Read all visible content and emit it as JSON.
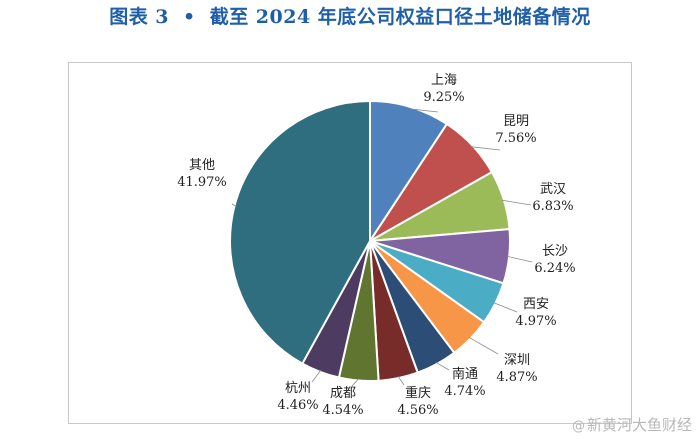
{
  "header": {
    "figure_no": "图表 3",
    "bullet": "•",
    "title": "截至 2024 年底公司权益口径土地储备情况"
  },
  "watermark": {
    "prefix": "@",
    "text": "新黄河大鱼财经"
  },
  "chart_data": {
    "type": "pie",
    "title": "截至 2024 年底公司权益口径土地储备情况",
    "slices": [
      {
        "name": "上海",
        "value": 9.25,
        "label": "9.25%",
        "color": "#4f81bd"
      },
      {
        "name": "昆明",
        "value": 7.56,
        "label": "7.56%",
        "color": "#c0504d"
      },
      {
        "name": "武汉",
        "value": 6.83,
        "label": "6.83%",
        "color": "#9bbb59"
      },
      {
        "name": "长沙",
        "value": 6.24,
        "label": "6.24%",
        "color": "#8064a2"
      },
      {
        "name": "西安",
        "value": 4.97,
        "label": "4.97%",
        "color": "#4bacc6"
      },
      {
        "name": "深圳",
        "value": 4.87,
        "label": "4.87%",
        "color": "#f79646"
      },
      {
        "name": "南通",
        "value": 4.74,
        "label": "4.74%",
        "color": "#2c4d75"
      },
      {
        "name": "重庆",
        "value": 4.56,
        "label": "4.56%",
        "color": "#772c2a"
      },
      {
        "name": "成都",
        "value": 4.54,
        "label": "4.54%",
        "color": "#5f7530"
      },
      {
        "name": "杭州",
        "value": 4.46,
        "label": "4.46%",
        "color": "#4d3b62"
      },
      {
        "name": "其他",
        "value": 41.97,
        "label": "41.97%",
        "color": "#2e6e7e"
      }
    ],
    "start": "12 o'clock",
    "direction": "clockwise",
    "legend": "none",
    "data_labels": "outside with leader lines"
  }
}
